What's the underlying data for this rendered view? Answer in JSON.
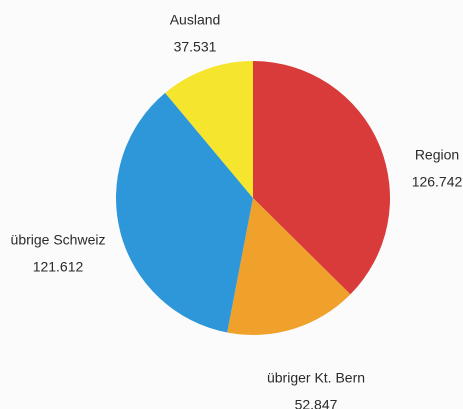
{
  "chart_data": {
    "type": "pie",
    "categories": [
      "Region",
      "übriger Kt. Bern",
      "übrige Schweiz",
      "Ausland"
    ],
    "values": [
      126742,
      52847,
      121612,
      37531
    ],
    "value_labels": [
      "126.742",
      "52.847",
      "121.612",
      "37.531"
    ],
    "colors": [
      "#d83b3a",
      "#f0a12c",
      "#2e97d9",
      "#f5e52d"
    ]
  }
}
